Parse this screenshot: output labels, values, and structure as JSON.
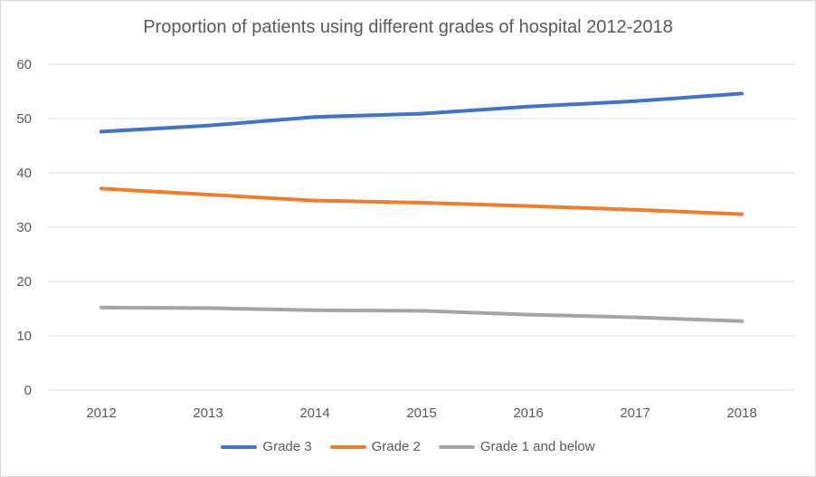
{
  "chart_data": {
    "type": "line",
    "title": "Proportion of patients using different grades of hospital 2012-2018",
    "xlabel": "",
    "ylabel": "",
    "categories": [
      "2012",
      "2013",
      "2014",
      "2015",
      "2016",
      "2017",
      "2018"
    ],
    "ylim": [
      0,
      60
    ],
    "yticks": [
      0,
      10,
      20,
      30,
      40,
      50,
      60
    ],
    "grid": "horizontal",
    "legend_position": "bottom",
    "series": [
      {
        "name": "Grade 3",
        "color": "#4472c4",
        "values": [
          47.6,
          48.7,
          50.3,
          50.9,
          52.2,
          53.2,
          54.6
        ]
      },
      {
        "name": "Grade 2",
        "color": "#ed7d31",
        "values": [
          37.1,
          36.0,
          34.9,
          34.5,
          33.9,
          33.2,
          32.4
        ]
      },
      {
        "name": "Grade 1 and below",
        "color": "#a5a5a5",
        "values": [
          15.2,
          15.1,
          14.7,
          14.6,
          13.9,
          13.4,
          12.7
        ]
      }
    ]
  }
}
